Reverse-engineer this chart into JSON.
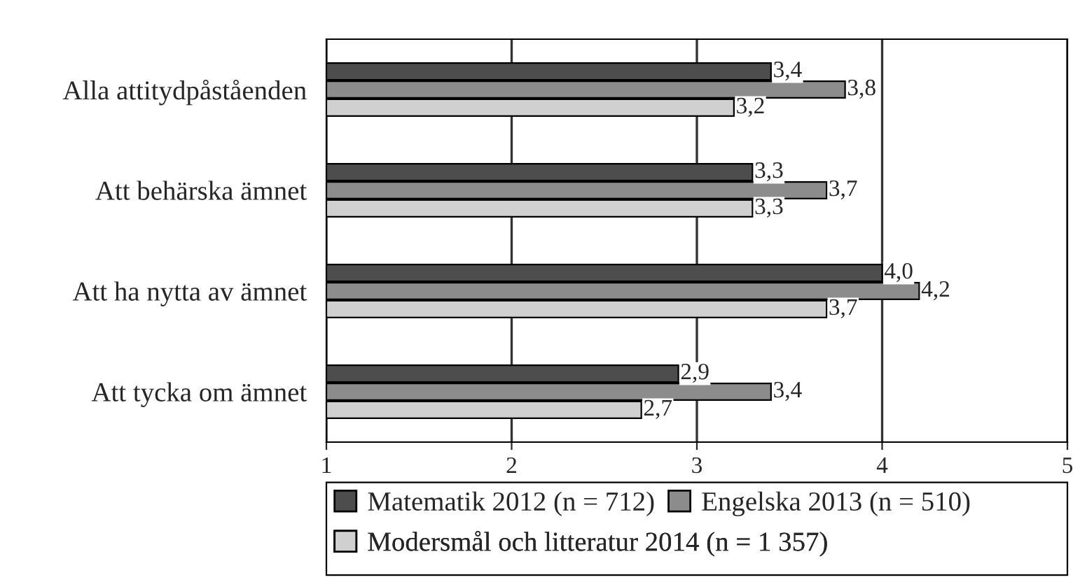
{
  "chart_data": {
    "type": "bar",
    "orientation": "horizontal",
    "categories": [
      "Alla attitydpåståenden",
      "Att behärska ämnet",
      "Att ha nytta av ämnet",
      "Att tycka om ämnet"
    ],
    "series": [
      {
        "name": "Matematik 2012 (n = 712)",
        "color": "#4d4d4d",
        "values": [
          3.4,
          3.3,
          4.0,
          2.9
        ],
        "value_labels": [
          "3,4",
          "3,3",
          "4,0",
          "2,9"
        ]
      },
      {
        "name": "Engelska 2013 (n = 510)",
        "color": "#8c8c8c",
        "values": [
          3.8,
          3.7,
          4.2,
          3.4
        ],
        "value_labels": [
          "3,8",
          "3,7",
          "4,2",
          "3,4"
        ]
      },
      {
        "name": "Modersmål och litteratur 2014 (n = 1 357)",
        "color": "#d0d0d0",
        "values": [
          3.2,
          3.3,
          3.7,
          2.7
        ],
        "value_labels": [
          "3,2",
          "3,3",
          "3,7",
          "2,7"
        ]
      }
    ],
    "xlim": [
      1,
      5
    ],
    "xticks": [
      1,
      2,
      3,
      4,
      5
    ],
    "grid": "x",
    "legend": "bottom"
  }
}
